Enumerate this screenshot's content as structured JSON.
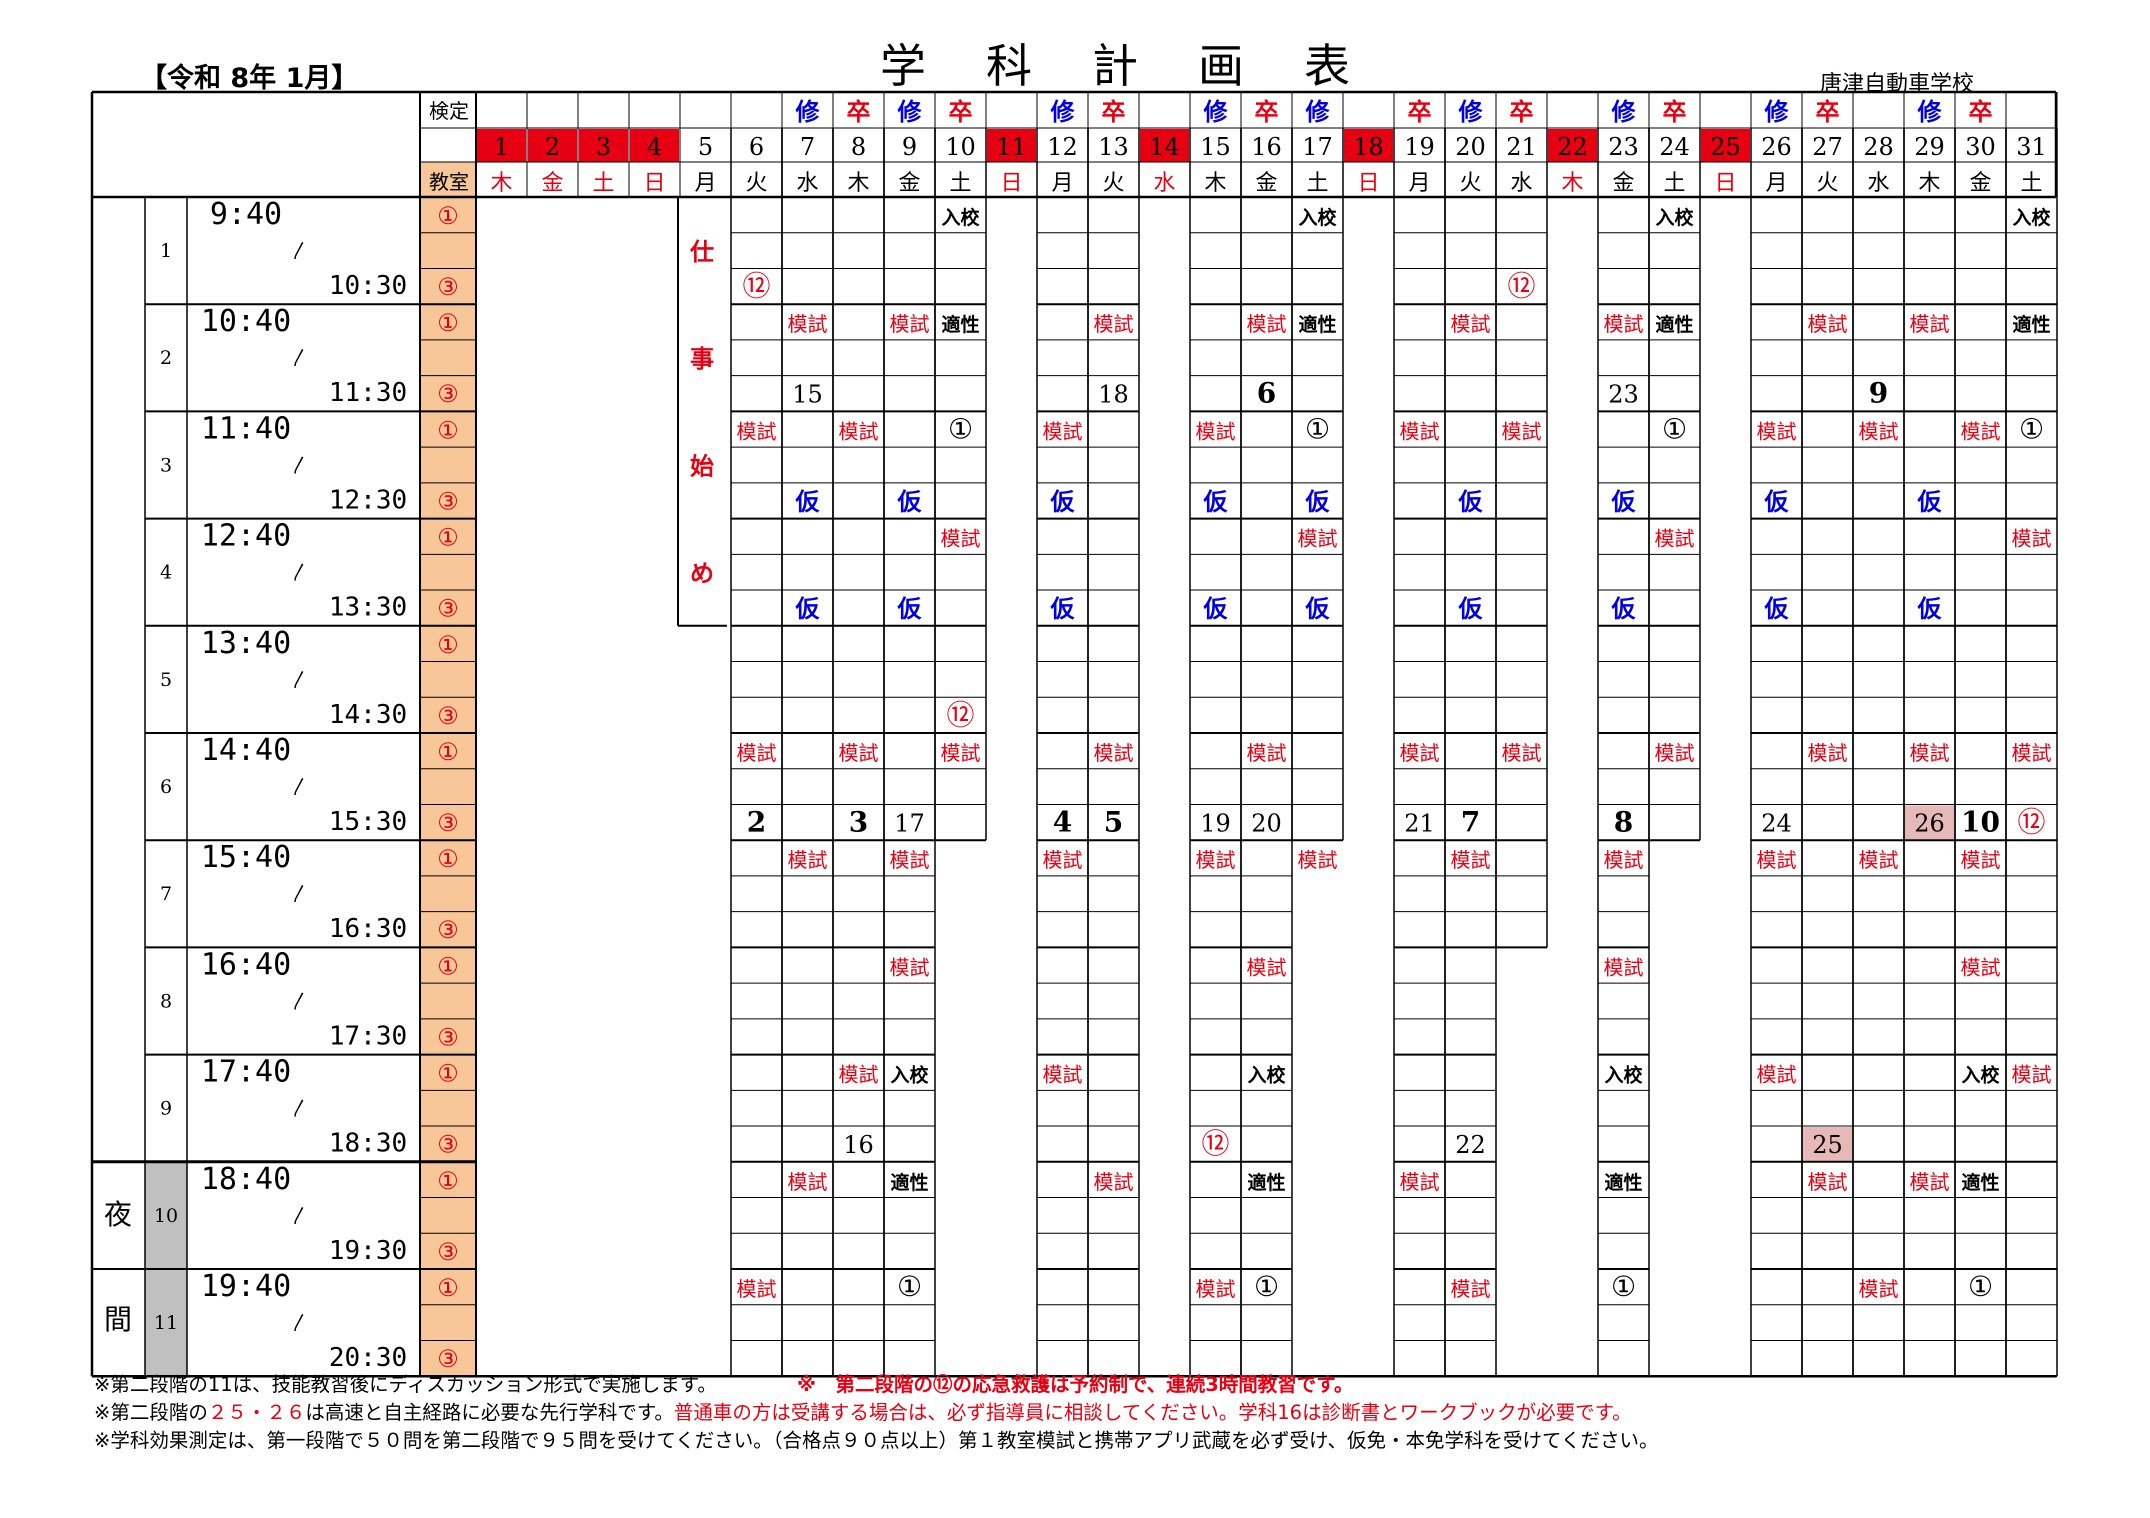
{
  "header": {
    "era": "【令和 8年 1月】",
    "title": "学科計画表",
    "school": "唐津自動車学校"
  },
  "row_labels": {
    "kentei": "検定",
    "kyoushitsu": "教室"
  },
  "days": [
    {
      "d": "1",
      "w": "木",
      "hol": true
    },
    {
      "d": "2",
      "w": "金",
      "hol": true
    },
    {
      "d": "3",
      "w": "土",
      "hol": true
    },
    {
      "d": "4",
      "w": "日",
      "hol": true
    },
    {
      "d": "5",
      "w": "月",
      "hol": false
    },
    {
      "d": "6",
      "w": "火",
      "hol": false
    },
    {
      "d": "7",
      "w": "水",
      "hol": false
    },
    {
      "d": "8",
      "w": "木",
      "hol": false
    },
    {
      "d": "9",
      "w": "金",
      "hol": false
    },
    {
      "d": "10",
      "w": "土",
      "hol": false
    },
    {
      "d": "11",
      "w": "日",
      "hol": true
    },
    {
      "d": "12",
      "w": "月",
      "hol": false
    },
    {
      "d": "13",
      "w": "火",
      "hol": false
    },
    {
      "d": "14",
      "w": "水",
      "hol": true
    },
    {
      "d": "15",
      "w": "木",
      "hol": false
    },
    {
      "d": "16",
      "w": "金",
      "hol": false
    },
    {
      "d": "17",
      "w": "土",
      "hol": false
    },
    {
      "d": "18",
      "w": "日",
      "hol": true
    },
    {
      "d": "19",
      "w": "月",
      "hol": false
    },
    {
      "d": "20",
      "w": "火",
      "hol": false
    },
    {
      "d": "21",
      "w": "水",
      "hol": false
    },
    {
      "d": "22",
      "w": "木",
      "hol": true
    },
    {
      "d": "23",
      "w": "金",
      "hol": false
    },
    {
      "d": "24",
      "w": "土",
      "hol": false
    },
    {
      "d": "25",
      "w": "日",
      "hol": true
    },
    {
      "d": "26",
      "w": "月",
      "hol": false
    },
    {
      "d": "27",
      "w": "火",
      "hol": false
    },
    {
      "d": "28",
      "w": "水",
      "hol": false
    },
    {
      "d": "29",
      "w": "木",
      "hol": false
    },
    {
      "d": "30",
      "w": "金",
      "hol": false
    },
    {
      "d": "31",
      "w": "土",
      "hol": false
    }
  ],
  "kentei_marks": [
    {
      "day": 7,
      "t": "修",
      "c": "blue"
    },
    {
      "day": 8,
      "t": "卒",
      "c": "red"
    },
    {
      "day": 9,
      "t": "修",
      "c": "blue"
    },
    {
      "day": 10,
      "t": "卒",
      "c": "red"
    },
    {
      "day": 12,
      "t": "修",
      "c": "blue"
    },
    {
      "day": 13,
      "t": "卒",
      "c": "red"
    },
    {
      "day": 15,
      "t": "修",
      "c": "blue"
    },
    {
      "day": 16,
      "t": "卒",
      "c": "red"
    },
    {
      "day": 17,
      "t": "修",
      "c": "blue"
    },
    {
      "day": 19,
      "t": "卒",
      "c": "red"
    },
    {
      "day": 20,
      "t": "修",
      "c": "blue"
    },
    {
      "day": 21,
      "t": "卒",
      "c": "red"
    },
    {
      "day": 23,
      "t": "修",
      "c": "blue"
    },
    {
      "day": 24,
      "t": "卒",
      "c": "red"
    },
    {
      "day": 26,
      "t": "修",
      "c": "blue"
    },
    {
      "day": 27,
      "t": "卒",
      "c": "red"
    },
    {
      "day": 29,
      "t": "修",
      "c": "blue"
    },
    {
      "day": 30,
      "t": "卒",
      "c": "red"
    }
  ],
  "periods": [
    {
      "no": "1",
      "start": "9:40",
      "end": "10:30"
    },
    {
      "no": "2",
      "start": "10:40",
      "end": "11:30"
    },
    {
      "no": "3",
      "start": "11:40",
      "end": "12:30"
    },
    {
      "no": "4",
      "start": "12:40",
      "end": "13:30"
    },
    {
      "no": "5",
      "start": "13:40",
      "end": "14:30"
    },
    {
      "no": "6",
      "start": "14:40",
      "end": "15:30"
    },
    {
      "no": "7",
      "start": "15:40",
      "end": "16:30"
    },
    {
      "no": "8",
      "start": "16:40",
      "end": "17:30"
    },
    {
      "no": "9",
      "start": "17:40",
      "end": "18:30"
    },
    {
      "no": "10",
      "start": "18:40",
      "end": "19:30"
    },
    {
      "no": "11",
      "start": "19:40",
      "end": "20:30"
    }
  ],
  "night_label": [
    "夜",
    "間"
  ],
  "room_marks": [
    "①",
    "③"
  ],
  "tilde": "〳",
  "shigoto_hajime": [
    "仕",
    "事",
    "始",
    "め"
  ],
  "cells": [
    {
      "p": 1,
      "r": 0,
      "day": 10,
      "t": "入校",
      "s": "k"
    },
    {
      "p": 1,
      "r": 0,
      "day": 17,
      "t": "入校",
      "s": "k"
    },
    {
      "p": 1,
      "r": 0,
      "day": 24,
      "t": "入校",
      "s": "k"
    },
    {
      "p": 1,
      "r": 0,
      "day": 31,
      "t": "入校",
      "s": "k"
    },
    {
      "p": 1,
      "r": 2,
      "day": 6,
      "t": "⑫",
      "s": "rc"
    },
    {
      "p": 1,
      "r": 2,
      "day": 21,
      "t": "⑫",
      "s": "rc"
    },
    {
      "p": 2,
      "r": 0,
      "day": 7,
      "t": "模試",
      "s": "r"
    },
    {
      "p": 2,
      "r": 0,
      "day": 9,
      "t": "模試",
      "s": "r"
    },
    {
      "p": 2,
      "r": 0,
      "day": 10,
      "t": "適性",
      "s": "k"
    },
    {
      "p": 2,
      "r": 0,
      "day": 13,
      "t": "模試",
      "s": "r"
    },
    {
      "p": 2,
      "r": 0,
      "day": 16,
      "t": "模試",
      "s": "r"
    },
    {
      "p": 2,
      "r": 0,
      "day": 17,
      "t": "適性",
      "s": "k"
    },
    {
      "p": 2,
      "r": 0,
      "day": 20,
      "t": "模試",
      "s": "r"
    },
    {
      "p": 2,
      "r": 0,
      "day": 23,
      "t": "模試",
      "s": "r"
    },
    {
      "p": 2,
      "r": 0,
      "day": 24,
      "t": "適性",
      "s": "k"
    },
    {
      "p": 2,
      "r": 0,
      "day": 27,
      "t": "模試",
      "s": "r"
    },
    {
      "p": 2,
      "r": 0,
      "day": 29,
      "t": "模試",
      "s": "r"
    },
    {
      "p": 2,
      "r": 0,
      "day": 31,
      "t": "適性",
      "s": "k"
    },
    {
      "p": 2,
      "r": 2,
      "day": 7,
      "t": "15",
      "s": "n"
    },
    {
      "p": 2,
      "r": 2,
      "day": 13,
      "t": "18",
      "s": "n"
    },
    {
      "p": 2,
      "r": 2,
      "day": 16,
      "t": "6",
      "s": "nb"
    },
    {
      "p": 2,
      "r": 2,
      "day": 23,
      "t": "23",
      "s": "n"
    },
    {
      "p": 2,
      "r": 2,
      "day": 28,
      "t": "9",
      "s": "nb"
    },
    {
      "p": 3,
      "r": 0,
      "day": 6,
      "t": "模試",
      "s": "r"
    },
    {
      "p": 3,
      "r": 0,
      "day": 8,
      "t": "模試",
      "s": "r"
    },
    {
      "p": 3,
      "r": 0,
      "day": 10,
      "t": "①",
      "s": "c"
    },
    {
      "p": 3,
      "r": 0,
      "day": 12,
      "t": "模試",
      "s": "r"
    },
    {
      "p": 3,
      "r": 0,
      "day": 15,
      "t": "模試",
      "s": "r"
    },
    {
      "p": 3,
      "r": 0,
      "day": 17,
      "t": "①",
      "s": "c"
    },
    {
      "p": 3,
      "r": 0,
      "day": 19,
      "t": "模試",
      "s": "r"
    },
    {
      "p": 3,
      "r": 0,
      "day": 21,
      "t": "模試",
      "s": "r"
    },
    {
      "p": 3,
      "r": 0,
      "day": 24,
      "t": "①",
      "s": "c"
    },
    {
      "p": 3,
      "r": 0,
      "day": 26,
      "t": "模試",
      "s": "r"
    },
    {
      "p": 3,
      "r": 0,
      "day": 28,
      "t": "模試",
      "s": "r"
    },
    {
      "p": 3,
      "r": 0,
      "day": 30,
      "t": "模試",
      "s": "r"
    },
    {
      "p": 3,
      "r": 0,
      "day": 31,
      "t": "①",
      "s": "c"
    },
    {
      "p": 3,
      "r": 2,
      "day": 7,
      "t": "仮",
      "s": "b"
    },
    {
      "p": 3,
      "r": 2,
      "day": 9,
      "t": "仮",
      "s": "b"
    },
    {
      "p": 3,
      "r": 2,
      "day": 12,
      "t": "仮",
      "s": "b"
    },
    {
      "p": 3,
      "r": 2,
      "day": 15,
      "t": "仮",
      "s": "b"
    },
    {
      "p": 3,
      "r": 2,
      "day": 17,
      "t": "仮",
      "s": "b"
    },
    {
      "p": 3,
      "r": 2,
      "day": 20,
      "t": "仮",
      "s": "b"
    },
    {
      "p": 3,
      "r": 2,
      "day": 23,
      "t": "仮",
      "s": "b"
    },
    {
      "p": 3,
      "r": 2,
      "day": 26,
      "t": "仮",
      "s": "b"
    },
    {
      "p": 3,
      "r": 2,
      "day": 29,
      "t": "仮",
      "s": "b"
    },
    {
      "p": 4,
      "r": 0,
      "day": 10,
      "t": "模試",
      "s": "r"
    },
    {
      "p": 4,
      "r": 0,
      "day": 17,
      "t": "模試",
      "s": "r"
    },
    {
      "p": 4,
      "r": 0,
      "day": 24,
      "t": "模試",
      "s": "r"
    },
    {
      "p": 4,
      "r": 0,
      "day": 31,
      "t": "模試",
      "s": "r"
    },
    {
      "p": 4,
      "r": 2,
      "day": 7,
      "t": "仮",
      "s": "b"
    },
    {
      "p": 4,
      "r": 2,
      "day": 9,
      "t": "仮",
      "s": "b"
    },
    {
      "p": 4,
      "r": 2,
      "day": 12,
      "t": "仮",
      "s": "b"
    },
    {
      "p": 4,
      "r": 2,
      "day": 15,
      "t": "仮",
      "s": "b"
    },
    {
      "p": 4,
      "r": 2,
      "day": 17,
      "t": "仮",
      "s": "b"
    },
    {
      "p": 4,
      "r": 2,
      "day": 20,
      "t": "仮",
      "s": "b"
    },
    {
      "p": 4,
      "r": 2,
      "day": 23,
      "t": "仮",
      "s": "b"
    },
    {
      "p": 4,
      "r": 2,
      "day": 26,
      "t": "仮",
      "s": "b"
    },
    {
      "p": 4,
      "r": 2,
      "day": 29,
      "t": "仮",
      "s": "b"
    },
    {
      "p": 5,
      "r": 2,
      "day": 10,
      "t": "⑫",
      "s": "rc"
    },
    {
      "p": 6,
      "r": 0,
      "day": 6,
      "t": "模試",
      "s": "r"
    },
    {
      "p": 6,
      "r": 0,
      "day": 8,
      "t": "模試",
      "s": "r"
    },
    {
      "p": 6,
      "r": 0,
      "day": 10,
      "t": "模試",
      "s": "r"
    },
    {
      "p": 6,
      "r": 0,
      "day": 13,
      "t": "模試",
      "s": "r"
    },
    {
      "p": 6,
      "r": 0,
      "day": 16,
      "t": "模試",
      "s": "r"
    },
    {
      "p": 6,
      "r": 0,
      "day": 19,
      "t": "模試",
      "s": "r"
    },
    {
      "p": 6,
      "r": 0,
      "day": 21,
      "t": "模試",
      "s": "r"
    },
    {
      "p": 6,
      "r": 0,
      "day": 24,
      "t": "模試",
      "s": "r"
    },
    {
      "p": 6,
      "r": 0,
      "day": 27,
      "t": "模試",
      "s": "r"
    },
    {
      "p": 6,
      "r": 0,
      "day": 29,
      "t": "模試",
      "s": "r"
    },
    {
      "p": 6,
      "r": 0,
      "day": 31,
      "t": "模試",
      "s": "r"
    },
    {
      "p": 6,
      "r": 2,
      "day": 6,
      "t": "2",
      "s": "nb"
    },
    {
      "p": 6,
      "r": 2,
      "day": 8,
      "t": "3",
      "s": "nb"
    },
    {
      "p": 6,
      "r": 2,
      "day": 9,
      "t": "17",
      "s": "n"
    },
    {
      "p": 6,
      "r": 2,
      "day": 12,
      "t": "4",
      "s": "nb"
    },
    {
      "p": 6,
      "r": 2,
      "day": 13,
      "t": "5",
      "s": "nb"
    },
    {
      "p": 6,
      "r": 2,
      "day": 15,
      "t": "19",
      "s": "n"
    },
    {
      "p": 6,
      "r": 2,
      "day": 16,
      "t": "20",
      "s": "n"
    },
    {
      "p": 6,
      "r": 2,
      "day": 19,
      "t": "21",
      "s": "n"
    },
    {
      "p": 6,
      "r": 2,
      "day": 20,
      "t": "7",
      "s": "nb"
    },
    {
      "p": 6,
      "r": 2,
      "day": 23,
      "t": "8",
      "s": "nb"
    },
    {
      "p": 6,
      "r": 2,
      "day": 26,
      "t": "24",
      "s": "n"
    },
    {
      "p": 6,
      "r": 2,
      "day": 29,
      "t": "26",
      "s": "np"
    },
    {
      "p": 6,
      "r": 2,
      "day": 30,
      "t": "10",
      "s": "nb"
    },
    {
      "p": 6,
      "r": 2,
      "day": 31,
      "t": "⑫",
      "s": "rc"
    },
    {
      "p": 7,
      "r": 0,
      "day": 7,
      "t": "模試",
      "s": "r"
    },
    {
      "p": 7,
      "r": 0,
      "day": 9,
      "t": "模試",
      "s": "r"
    },
    {
      "p": 7,
      "r": 0,
      "day": 12,
      "t": "模試",
      "s": "r"
    },
    {
      "p": 7,
      "r": 0,
      "day": 15,
      "t": "模試",
      "s": "r"
    },
    {
      "p": 7,
      "r": 0,
      "day": 17,
      "t": "模試",
      "s": "r"
    },
    {
      "p": 7,
      "r": 0,
      "day": 20,
      "t": "模試",
      "s": "r"
    },
    {
      "p": 7,
      "r": 0,
      "day": 23,
      "t": "模試",
      "s": "r"
    },
    {
      "p": 7,
      "r": 0,
      "day": 26,
      "t": "模試",
      "s": "r"
    },
    {
      "p": 7,
      "r": 0,
      "day": 28,
      "t": "模試",
      "s": "r"
    },
    {
      "p": 7,
      "r": 0,
      "day": 30,
      "t": "模試",
      "s": "r"
    },
    {
      "p": 8,
      "r": 0,
      "day": 9,
      "t": "模試",
      "s": "r"
    },
    {
      "p": 8,
      "r": 0,
      "day": 16,
      "t": "模試",
      "s": "r"
    },
    {
      "p": 8,
      "r": 0,
      "day": 23,
      "t": "模試",
      "s": "r"
    },
    {
      "p": 8,
      "r": 0,
      "day": 30,
      "t": "模試",
      "s": "r"
    },
    {
      "p": 9,
      "r": 0,
      "day": 8,
      "t": "模試",
      "s": "r"
    },
    {
      "p": 9,
      "r": 0,
      "day": 9,
      "t": "入校",
      "s": "k"
    },
    {
      "p": 9,
      "r": 0,
      "day": 12,
      "t": "模試",
      "s": "r"
    },
    {
      "p": 9,
      "r": 0,
      "day": 16,
      "t": "入校",
      "s": "k"
    },
    {
      "p": 9,
      "r": 0,
      "day": 23,
      "t": "入校",
      "s": "k"
    },
    {
      "p": 9,
      "r": 0,
      "day": 26,
      "t": "模試",
      "s": "r"
    },
    {
      "p": 9,
      "r": 0,
      "day": 30,
      "t": "入校",
      "s": "k"
    },
    {
      "p": 9,
      "r": 0,
      "day": 31,
      "t": "模試",
      "s": "r"
    },
    {
      "p": 9,
      "r": 2,
      "day": 8,
      "t": "16",
      "s": "n"
    },
    {
      "p": 9,
      "r": 2,
      "day": 15,
      "t": "⑫",
      "s": "rc"
    },
    {
      "p": 9,
      "r": 2,
      "day": 20,
      "t": "22",
      "s": "n"
    },
    {
      "p": 9,
      "r": 2,
      "day": 27,
      "t": "25",
      "s": "np"
    },
    {
      "p": 10,
      "r": 0,
      "day": 7,
      "t": "模試",
      "s": "r"
    },
    {
      "p": 10,
      "r": 0,
      "day": 9,
      "t": "適性",
      "s": "k"
    },
    {
      "p": 10,
      "r": 0,
      "day": 13,
      "t": "模試",
      "s": "r"
    },
    {
      "p": 10,
      "r": 0,
      "day": 16,
      "t": "適性",
      "s": "k"
    },
    {
      "p": 10,
      "r": 0,
      "day": 19,
      "t": "模試",
      "s": "r"
    },
    {
      "p": 10,
      "r": 0,
      "day": 23,
      "t": "適性",
      "s": "k"
    },
    {
      "p": 10,
      "r": 0,
      "day": 27,
      "t": "模試",
      "s": "r"
    },
    {
      "p": 10,
      "r": 0,
      "day": 29,
      "t": "模試",
      "s": "r"
    },
    {
      "p": 10,
      "r": 0,
      "day": 30,
      "t": "適性",
      "s": "k"
    },
    {
      "p": 11,
      "r": 0,
      "day": 6,
      "t": "模試",
      "s": "r"
    },
    {
      "p": 11,
      "r": 0,
      "day": 9,
      "t": "①",
      "s": "c"
    },
    {
      "p": 11,
      "r": 0,
      "day": 15,
      "t": "模試",
      "s": "r"
    },
    {
      "p": 11,
      "r": 0,
      "day": 16,
      "t": "①",
      "s": "c"
    },
    {
      "p": 11,
      "r": 0,
      "day": 20,
      "t": "模試",
      "s": "r"
    },
    {
      "p": 11,
      "r": 0,
      "day": 23,
      "t": "①",
      "s": "c"
    },
    {
      "p": 11,
      "r": 0,
      "day": 28,
      "t": "模試",
      "s": "r"
    },
    {
      "p": 11,
      "r": 0,
      "day": 30,
      "t": "①",
      "s": "c"
    }
  ],
  "footer": {
    "line1": "※第二段階の11は、技能教習後にディスカッション形式で実施します。",
    "line1_red": "※　第二段階の⑫の応急救護は予約制で、連続3時間教習です。",
    "line2_a": "※第二段階の",
    "line2_b": "２５・２６",
    "line2_c": "は高速と自主経路に必要な先行学科です。",
    "line2_d": "普通車の方は受講する場合は、必ず指導員に相談してください。学科16は診断書とワークブックが必要です。",
    "line3": "※学科効果測定は、第一段階で５０問を第二段階で９５問を受けてください。（合格点９０点以上）第１教室模試と携帯アプリ武蔵を必ず受け、仮免・本免学科を受けてください。"
  },
  "colors": {
    "red": "#e60012",
    "blue": "#0000e0",
    "orange": "#f7c79a",
    "gray": "#c0c0c0",
    "pink": "#e6b8b7",
    "black": "#000000"
  }
}
